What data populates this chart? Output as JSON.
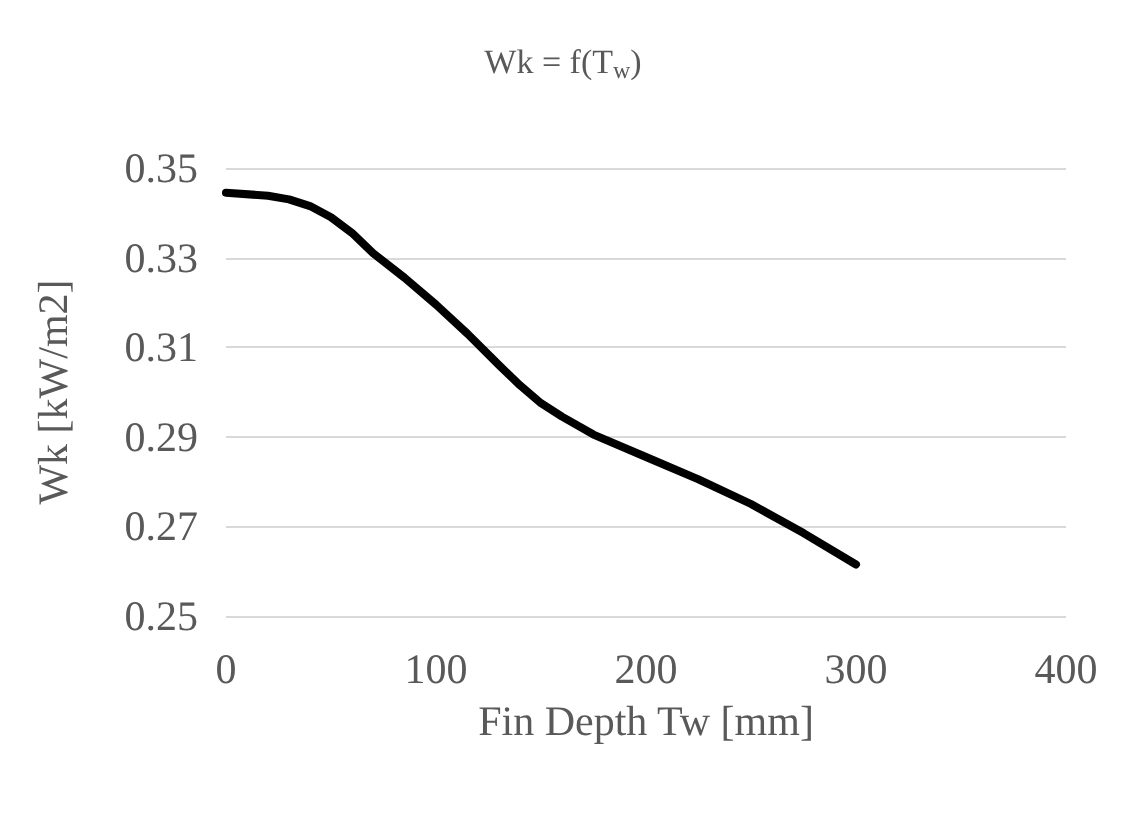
{
  "chart_data": {
    "type": "line",
    "title": "Wk = f(T$_{w}$)",
    "xlabel": "Fin Depth Tw [mm]",
    "ylabel": "Wk [kW/m2]",
    "x": [
      0,
      20,
      30,
      40,
      50,
      60,
      70,
      85,
      100,
      115,
      130,
      140,
      150,
      160,
      175,
      200,
      225,
      250,
      275,
      300
    ],
    "series": [
      {
        "color": "#000000",
        "values": [
          0.3445,
          0.3438,
          0.343,
          0.3415,
          0.339,
          0.3355,
          0.331,
          0.3255,
          0.3195,
          0.313,
          0.306,
          0.3015,
          0.2975,
          0.2945,
          0.2905,
          0.2855,
          0.2805,
          0.275,
          0.2685,
          0.2615
        ]
      }
    ],
    "xlim": [
      0,
      400
    ],
    "xticks": [
      0,
      100,
      200,
      300,
      400
    ],
    "ylim": [
      0.25,
      0.35
    ],
    "yticks": [
      0.25,
      0.27,
      0.29,
      0.31,
      0.33,
      0.35
    ],
    "grid": "y",
    "marker": "none",
    "line_style": "solid"
  }
}
